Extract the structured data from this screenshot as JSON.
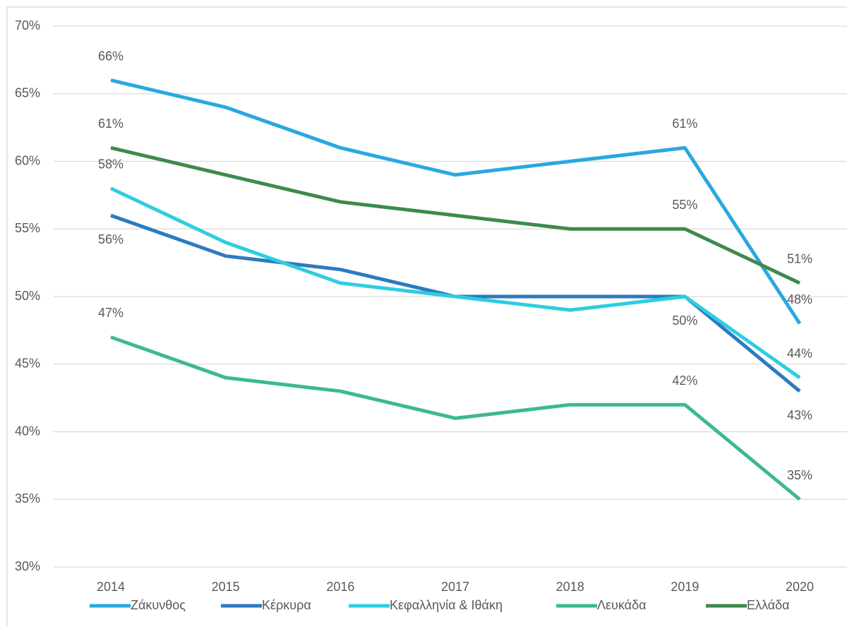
{
  "chart_data": {
    "type": "line",
    "categories": [
      "2014",
      "2015",
      "2016",
      "2017",
      "2018",
      "2019",
      "2020"
    ],
    "series": [
      {
        "name": "Ζάκυνθος",
        "color": "#29a8df",
        "values": [
          66,
          64,
          61,
          59,
          60,
          61,
          48
        ],
        "value_labels": [
          "66%",
          null,
          null,
          null,
          null,
          "61%",
          "48%"
        ]
      },
      {
        "name": "Κέρκυρα",
        "color": "#2b7bc0",
        "values": [
          56,
          53,
          52,
          50,
          50,
          50,
          43
        ],
        "value_labels": [
          "56%",
          null,
          null,
          null,
          null,
          "50%",
          "43%"
        ]
      },
      {
        "name": "Κεφαλληνία & Ιθάκη",
        "color": "#2ecde0",
        "values": [
          58,
          54,
          51,
          50,
          49,
          50,
          44
        ],
        "value_labels": [
          "58%",
          null,
          null,
          null,
          null,
          null,
          "44%"
        ]
      },
      {
        "name": "Λευκάδα",
        "color": "#3db98f",
        "values": [
          47,
          44,
          43,
          41,
          42,
          42,
          35
        ],
        "value_labels": [
          "47%",
          null,
          null,
          null,
          null,
          "42%",
          "35%"
        ]
      },
      {
        "name": "Ελλάδα",
        "color": "#3d8a4d",
        "values": [
          61,
          59,
          57,
          56,
          55,
          55,
          51
        ],
        "value_labels": [
          "61%",
          null,
          null,
          null,
          null,
          "55%",
          "51%"
        ]
      }
    ],
    "ylim": [
      30,
      70
    ],
    "yticks": [
      {
        "value": 30,
        "label": "30%"
      },
      {
        "value": 35,
        "label": "35%"
      },
      {
        "value": 40,
        "label": "40%"
      },
      {
        "value": 45,
        "label": "45%"
      },
      {
        "value": 50,
        "label": "50%"
      },
      {
        "value": 55,
        "label": "55%"
      },
      {
        "value": 60,
        "label": "60%"
      },
      {
        "value": 65,
        "label": "65%"
      },
      {
        "value": 70,
        "label": "70%"
      }
    ],
    "grid": true,
    "legend": "bottom"
  }
}
